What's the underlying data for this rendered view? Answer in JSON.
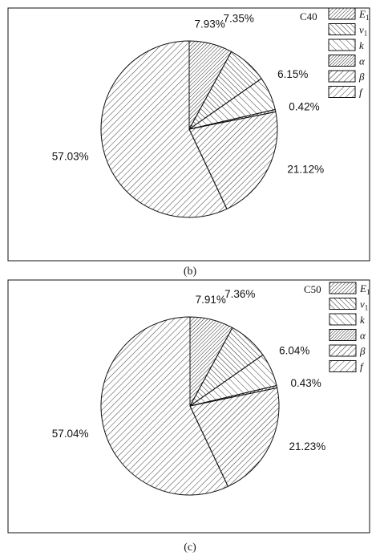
{
  "chart_data": [
    {
      "type": "pie",
      "panel_label": "(b)",
      "legend_title": "C40",
      "legend_position": "top-right",
      "slices": [
        {
          "key": "E1",
          "value": 7.93,
          "label": "7.93%",
          "hatch": "hatch-b-dense"
        },
        {
          "key": "v1",
          "value": 7.35,
          "label": "7.35%",
          "hatch": "hatch-f"
        },
        {
          "key": "k",
          "value": 6.15,
          "label": "6.15%",
          "hatch": "hatch-f-sparse"
        },
        {
          "key": "alpha",
          "value": 0.42,
          "label": "0.42%",
          "hatch": "hatch-b-tight"
        },
        {
          "key": "beta",
          "value": 21.12,
          "label": "21.12%",
          "hatch": "hatch-b"
        },
        {
          "key": "f",
          "value": 57.03,
          "label": "57.03%",
          "hatch": "hatch-b-sparse"
        }
      ],
      "legend": [
        {
          "main": "E",
          "sub": "1",
          "hatch": "hatch-b-dense"
        },
        {
          "main": "v",
          "sub": "1",
          "hatch": "hatch-f"
        },
        {
          "main": "k",
          "sub": "",
          "hatch": "hatch-f-sparse"
        },
        {
          "main": "α",
          "sub": "",
          "hatch": "hatch-b-tight"
        },
        {
          "main": "β",
          "sub": "",
          "hatch": "hatch-b"
        },
        {
          "main": "f",
          "sub": "",
          "hatch": "hatch-b-sparse"
        }
      ]
    },
    {
      "type": "pie",
      "panel_label": "(c)",
      "legend_title": "C50",
      "legend_position": "top-right",
      "slices": [
        {
          "key": "E1",
          "value": 7.91,
          "label": "7.91%",
          "hatch": "hatch-b-dense"
        },
        {
          "key": "v1",
          "value": 7.36,
          "label": "7.36%",
          "hatch": "hatch-f"
        },
        {
          "key": "k",
          "value": 6.04,
          "label": "6.04%",
          "hatch": "hatch-f-sparse"
        },
        {
          "key": "alpha",
          "value": 0.43,
          "label": "0.43%",
          "hatch": "hatch-b-tight"
        },
        {
          "key": "beta",
          "value": 21.23,
          "label": "21.23%",
          "hatch": "hatch-b"
        },
        {
          "key": "f",
          "value": 57.04,
          "label": "57.04%",
          "hatch": "hatch-b-sparse"
        }
      ],
      "legend": [
        {
          "main": "E",
          "sub": "1",
          "hatch": "hatch-b-dense"
        },
        {
          "main": "v",
          "sub": "1",
          "hatch": "hatch-f"
        },
        {
          "main": "k",
          "sub": "",
          "hatch": "hatch-f-sparse"
        },
        {
          "main": "α",
          "sub": "",
          "hatch": "hatch-b-tight"
        },
        {
          "main": "β",
          "sub": "",
          "hatch": "hatch-b"
        },
        {
          "main": "f",
          "sub": "",
          "hatch": "hatch-b-sparse"
        }
      ]
    }
  ]
}
